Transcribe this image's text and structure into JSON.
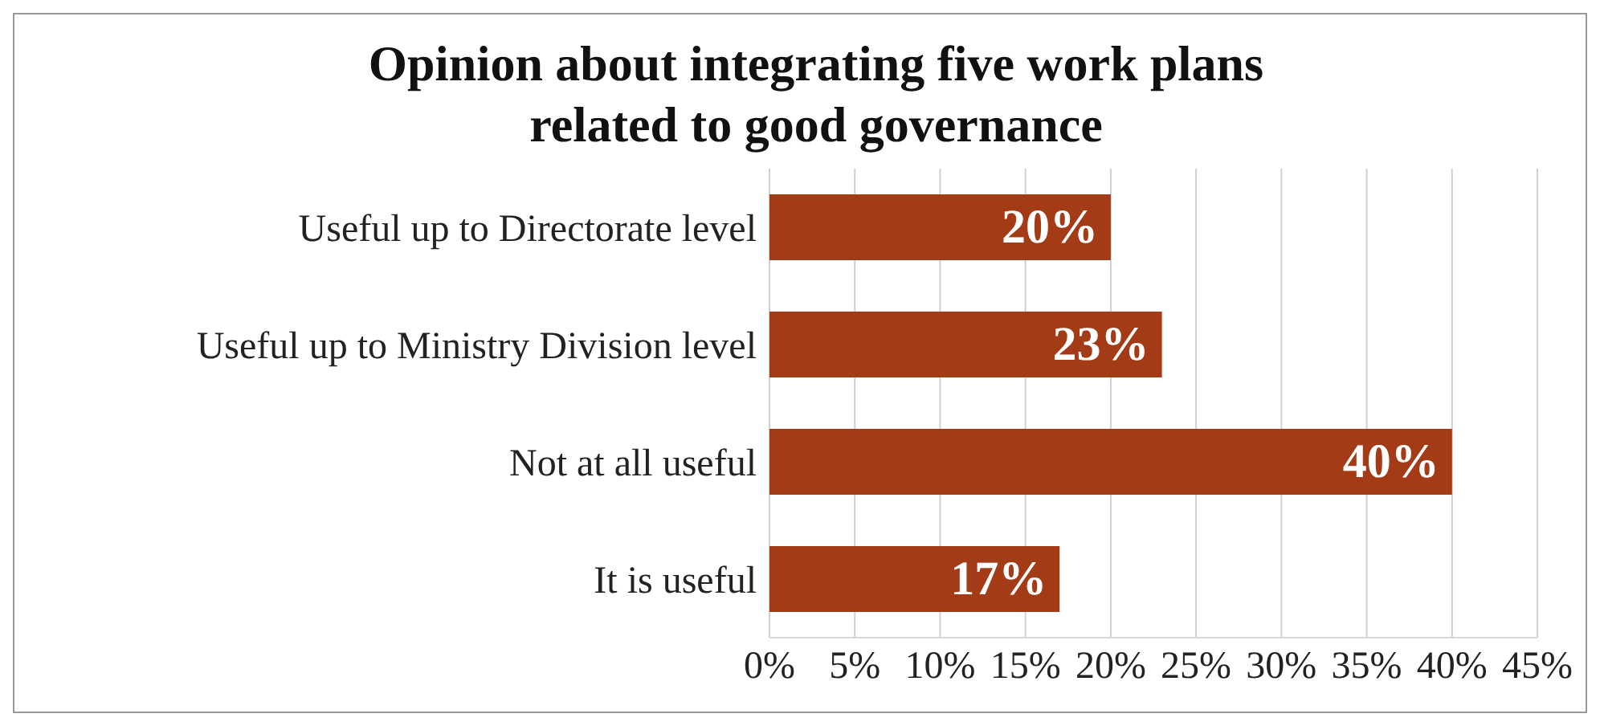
{
  "chart_data": {
    "type": "bar",
    "orientation": "horizontal",
    "title": "Opinion about integrating five work plans related to good governance",
    "categories": [
      "Useful up to Directorate level",
      "Useful up to Ministry Division level",
      "Not at all useful",
      "It is useful"
    ],
    "values": [
      20,
      23,
      40,
      17
    ],
    "value_labels": [
      "20%",
      "23%",
      "40%",
      "17%"
    ],
    "color": "#a33b17",
    "xlim": [
      0,
      45
    ],
    "xticks": [
      {
        "value": 0,
        "label": "0%"
      },
      {
        "value": 5,
        "label": "5%"
      },
      {
        "value": 10,
        "label": "10%"
      },
      {
        "value": 15,
        "label": "15%"
      },
      {
        "value": 20,
        "label": "20%"
      },
      {
        "value": 25,
        "label": "25%"
      },
      {
        "value": 30,
        "label": "30%"
      },
      {
        "value": 35,
        "label": "35%"
      },
      {
        "value": 40,
        "label": "40%"
      },
      {
        "value": 45,
        "label": "45%"
      }
    ],
    "grid": "x"
  }
}
